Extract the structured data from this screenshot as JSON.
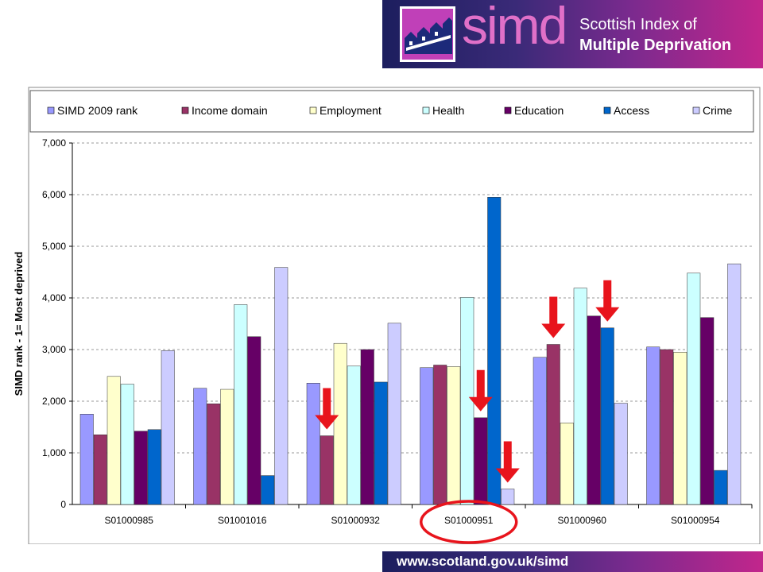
{
  "header": {
    "brand_word": "simd",
    "line1": "Scottish Index of",
    "line2": "Multiple Deprivation",
    "colors": {
      "gradient_start": "#1c1e5e",
      "gradient_end": "#c2268c",
      "logo_text": "#e070c8"
    }
  },
  "footer": {
    "url": "www.scotland.gov.uk/simd"
  },
  "chart_data": {
    "type": "bar",
    "ylabel": "SIMD rank - 1= Most deprived",
    "xlabel": "",
    "ylim": [
      0,
      7000
    ],
    "yticks": [
      0,
      1000,
      2000,
      3000,
      4000,
      5000,
      6000,
      7000
    ],
    "ytick_labels": [
      "0",
      "1,000",
      "2,000",
      "3,000",
      "4,000",
      "5,000",
      "6,000",
      "7,000"
    ],
    "grid": "horizontal dashed",
    "legend_position": "top",
    "categories": [
      "S01000985",
      "S01001016",
      "S01000932",
      "S01000951",
      "S01000960",
      "S01000954"
    ],
    "series": [
      {
        "name": "SIMD 2009 rank",
        "color": "#9999ff",
        "values": [
          1750,
          2250,
          2350,
          2650,
          2850,
          3050
        ]
      },
      {
        "name": "Income domain",
        "color": "#993366",
        "values": [
          1350,
          1950,
          1330,
          2700,
          3100,
          3000
        ]
      },
      {
        "name": "Employment",
        "color": "#ffffcc",
        "values": [
          2480,
          2230,
          3120,
          2670,
          1580,
          2950
        ]
      },
      {
        "name": "Health",
        "color": "#ccffff",
        "values": [
          2330,
          3870,
          2680,
          4010,
          4190,
          4480
        ]
      },
      {
        "name": "Education",
        "color": "#660066",
        "values": [
          1420,
          3250,
          3000,
          1680,
          3650,
          3620
        ]
      },
      {
        "name": "Access",
        "color": "#0066cc",
        "values": [
          1450,
          560,
          2370,
          5950,
          3420,
          660
        ]
      },
      {
        "name": "Crime",
        "color": "#ccccff",
        "values": [
          2980,
          4590,
          3510,
          300,
          1960,
          4660
        ]
      }
    ],
    "annotations": {
      "highlighted_category": "S01000951",
      "circle_color": "#e8141c",
      "arrow_color": "#e8141c",
      "arrows": [
        {
          "category": "S01000932",
          "series": "Income domain"
        },
        {
          "category": "S01000951",
          "series": "Education"
        },
        {
          "category": "S01000951",
          "series": "Crime"
        },
        {
          "category": "S01000960",
          "series": "Income domain"
        },
        {
          "category": "S01000960",
          "series": "Access"
        }
      ]
    }
  }
}
